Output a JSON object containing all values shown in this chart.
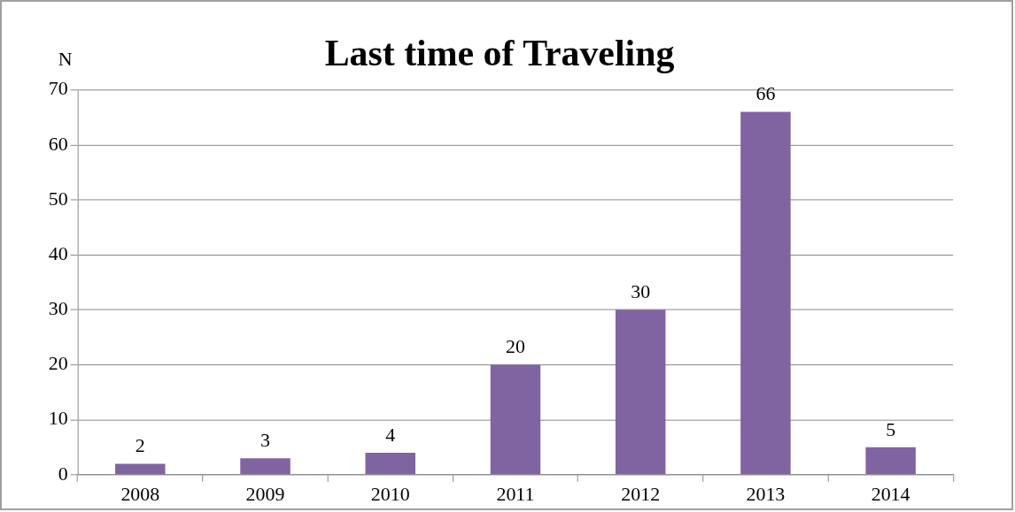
{
  "chart_data": {
    "type": "bar",
    "title": "Last time of Traveling",
    "ylabel": "N",
    "categories": [
      "2008",
      "2009",
      "2010",
      "2011",
      "2012",
      "2013",
      "2014"
    ],
    "values": [
      2,
      3,
      4,
      20,
      30,
      66,
      5
    ],
    "color": "#8064a2",
    "ylim": [
      0,
      70
    ],
    "yticks": [
      0,
      10,
      20,
      30,
      40,
      50,
      60,
      70
    ],
    "grid": "y",
    "data_labels": true
  }
}
